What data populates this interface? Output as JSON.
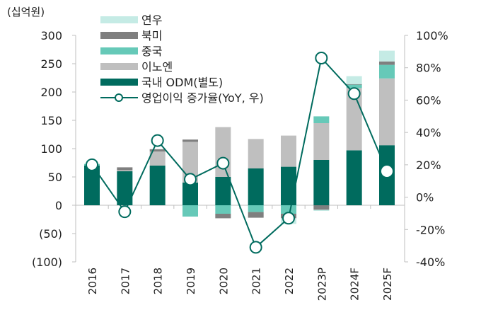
{
  "chart_data": {
    "type": "bar",
    "unit_label": "(십억원)",
    "categories": [
      "2016",
      "2017",
      "2018",
      "2019",
      "2020",
      "2021",
      "2022",
      "2023P",
      "2024F",
      "2025F"
    ],
    "ylim": [
      -100,
      300
    ],
    "yticks": [
      300,
      250,
      200,
      150,
      100,
      50,
      0,
      -50,
      -100
    ],
    "ytick_labels": [
      "300",
      "250",
      "200",
      "150",
      "100",
      "50",
      "0",
      "(50)",
      "(100)"
    ],
    "y2lim": [
      -40,
      100
    ],
    "y2ticks": [
      100,
      80,
      60,
      40,
      20,
      0,
      -20,
      -40
    ],
    "y2tick_labels": [
      "100%",
      "80%",
      "60%",
      "40%",
      "20%",
      "0%",
      "-20%",
      "-40%"
    ],
    "series": [
      {
        "name": "국내 ODM(별도)",
        "color": "#006b5e",
        "values": [
          70,
          60,
          70,
          40,
          50,
          65,
          68,
          80,
          97,
          106
        ]
      },
      {
        "name": "이노엔",
        "color": "#bfbfbf",
        "values": [
          0,
          2,
          25,
          72,
          88,
          52,
          55,
          65,
          110,
          118
        ]
      },
      {
        "name": "중국",
        "color": "#66c9b8",
        "values": [
          3,
          0,
          0,
          -20,
          -15,
          -12,
          -15,
          12,
          6,
          24
        ]
      },
      {
        "name": "북미",
        "color": "#7f7f7f",
        "values": [
          0,
          5,
          4,
          4,
          -8,
          -10,
          -8,
          -8,
          1,
          6
        ]
      },
      {
        "name": "연우",
        "color": "#c5ebe5",
        "values": [
          0,
          0,
          0,
          0,
          0,
          0,
          -10,
          -2,
          14,
          19
        ]
      }
    ],
    "line": {
      "name": "영업이익 증가율(YoY, 우)",
      "color": "#006b5e",
      "axis": "right",
      "values": [
        20,
        -9,
        35,
        11,
        21,
        -31,
        -13,
        86,
        64,
        16
      ]
    },
    "legend_placement": "top-left"
  }
}
